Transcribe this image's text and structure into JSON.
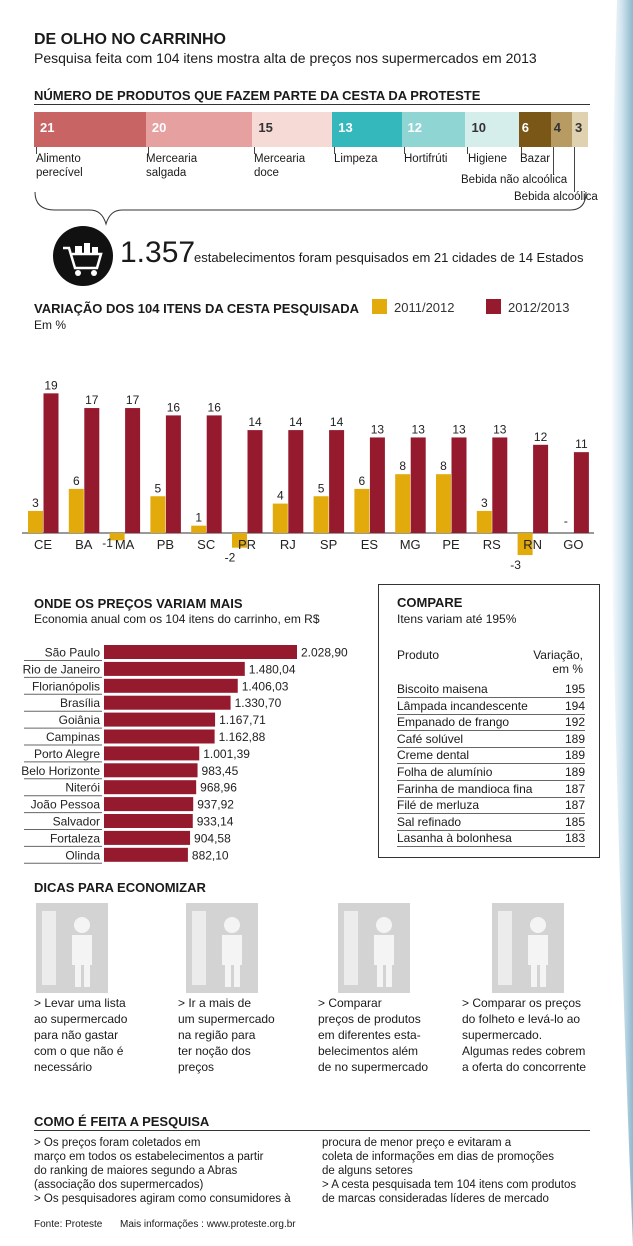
{
  "header": {
    "title": "DE OLHO NO CARRINHO",
    "subtitle": "Pesquisa feita com 104 itens mostra alta de preços nos supermercados em 2013"
  },
  "basket": {
    "title": "NÚMERO DE PRODUTOS QUE FAZEM PARTE DA CESTA DA PROTESTE",
    "segments": [
      {
        "value": "21",
        "label": "Alimento perecível",
        "color": "#c86464"
      },
      {
        "value": "20",
        "label": "Mercearia salgada",
        "color": "#e6a0a0"
      },
      {
        "value": "15",
        "label": "Mercearia doce",
        "color": "#f6dad6"
      },
      {
        "value": "13",
        "label": "Limpeza",
        "color": "#34b8bb"
      },
      {
        "value": "12",
        "label": "Hortifrúti",
        "color": "#8fd5d4"
      },
      {
        "value": "10",
        "label": "Higiene",
        "color": "#d5eeec"
      },
      {
        "value": "6",
        "label": "Bazar",
        "color": "#7a5617"
      },
      {
        "value": "4",
        "label": "Bebida não alcoólica",
        "color": "#b79b62"
      },
      {
        "value": "3",
        "label": "Bebida alcoólica",
        "color": "#e0d1b0"
      }
    ]
  },
  "establishments": {
    "number": "1.357",
    "text": "estabelecimentos foram pesquisados em 21 cidades de 14 Estados",
    "icon": "shopping-cart-icon"
  },
  "variation": {
    "title": "VARIAÇÃO DOS 104 ITENS DA CESTA PESQUISADA",
    "unit": "Em %"
  },
  "savings": {
    "title": "ONDE OS PREÇOS VARIAM MAIS",
    "subtitle": "Economia anual com os 104 itens do carrinho, em R$"
  },
  "chart_data": [
    {
      "type": "bar",
      "title": "VARIAÇÃO DOS 104 ITENS DA CESTA PESQUISADA",
      "ylabel": "Em %",
      "categories": [
        "CE",
        "BA",
        "MA",
        "PB",
        "SC",
        "PR",
        "RJ",
        "SP",
        "ES",
        "MG",
        "PE",
        "RS",
        "RN",
        "GO"
      ],
      "series": [
        {
          "name": "2011/2012",
          "color": "#e3aa0c",
          "values": [
            3,
            6,
            -1,
            5,
            1,
            -2,
            4,
            5,
            6,
            8,
            8,
            3,
            -3,
            null
          ],
          "labels": [
            "3",
            "6",
            "-1",
            "5",
            "1",
            "-2",
            "4",
            "5",
            "6",
            "8",
            "8",
            "3",
            "-3",
            "-"
          ]
        },
        {
          "name": "2012/2013",
          "color": "#951a2e",
          "values": [
            19,
            17,
            17,
            16,
            16,
            14,
            14,
            14,
            13,
            13,
            13,
            13,
            12,
            11
          ],
          "labels": [
            "19",
            "17",
            "17",
            "16",
            "16",
            "14",
            "14",
            "14",
            "13",
            "13",
            "13",
            "13",
            "12",
            "11"
          ]
        }
      ],
      "ylim": [
        -3,
        19
      ],
      "grid": false,
      "legend": "top-right"
    },
    {
      "type": "bar",
      "orientation": "horizontal",
      "title": "ONDE OS PREÇOS VARIAM MAIS",
      "subtitle": "Economia anual com os 104 itens do carrinho, em R$",
      "categories": [
        "São Paulo",
        "Rio de Janeiro",
        "Florianópolis",
        "Brasília",
        "Goiânia",
        "Campinas",
        "Porto Alegre",
        "Belo Horizonte",
        "Niterói",
        "João Pessoa",
        "Salvador",
        "Fortaleza",
        "Olinda"
      ],
      "values": [
        2028.9,
        1480.04,
        1406.03,
        1330.7,
        1167.71,
        1162.88,
        1001.39,
        983.45,
        968.96,
        937.92,
        933.14,
        904.58,
        882.1
      ],
      "labels": [
        "2.028,90",
        "1.480,04",
        "1.406,03",
        "1.330,70",
        "1.167,71",
        "1.162,88",
        "1.001,39",
        "983,45",
        "968,96",
        "937,92",
        "933,14",
        "904,58",
        "882,10"
      ],
      "color": "#951a2e"
    }
  ],
  "compare": {
    "title": "COMPARE",
    "subtitle": "Itens variam até 195%",
    "col_product": "Produto",
    "col_variation_1": "Variação,",
    "col_variation_2": "em %",
    "rows": [
      {
        "product": "Biscoito maisena",
        "value": "195"
      },
      {
        "product": "Lâmpada incandescente",
        "value": "194"
      },
      {
        "product": "Empanado de frango",
        "value": "192"
      },
      {
        "product": "Café solúvel",
        "value": "189"
      },
      {
        "product": "Creme dental",
        "value": "189"
      },
      {
        "product": "Folha de alumínio",
        "value": "189"
      },
      {
        "product": "Farinha de mandioca fina",
        "value": "187"
      },
      {
        "product": "Filé de merluza",
        "value": "187"
      },
      {
        "product": "Sal refinado",
        "value": "185"
      },
      {
        "product": "Lasanha à bolonhesa",
        "value": "183"
      }
    ]
  },
  "tips": {
    "title": "DICAS PARA ECONOMIZAR",
    "items": [
      {
        "icon": "shopping-list-icon",
        "lines": [
          "> Levar uma lista",
          "ao supermercado",
          "para não gastar",
          "com o que não é",
          "necessário"
        ]
      },
      {
        "icon": "shelf-shopper-icon",
        "lines": [
          "> Ir a mais de",
          "um supermercado",
          "na região para",
          "ter noção dos",
          "preços"
        ]
      },
      {
        "icon": "compare-stores-icon",
        "lines": [
          "> Comparar",
          "preços de produtos",
          "em diferentes esta-",
          "belecimentos além",
          "de no supermercado"
        ]
      },
      {
        "icon": "flyer-icon",
        "lines": [
          "> Comparar os preços",
          "do folheto e levá-lo ao",
          "supermercado.",
          "Algumas redes cobrem",
          "a oferta do concorrente"
        ]
      }
    ]
  },
  "method": {
    "title": "COMO É FEITA A PESQUISA",
    "left_lines": [
      "> Os preços foram coletados em",
      "março em todos os estabelecimentos a partir",
      "do ranking de maiores segundo a Abras",
      "(associação dos supermercados)",
      "> Os pesquisadores agiram como consumidores à"
    ],
    "right_lines": [
      "procura de menor preço e evitaram a",
      "coleta de informações em dias de promoções",
      "de alguns setores",
      "> A cesta pesquisada tem 104 itens com produtos",
      "de marcas consideradas líderes de mercado"
    ]
  },
  "footer": {
    "source": "Fonte: Proteste",
    "more": "Mais informações : www.proteste.org.br"
  }
}
